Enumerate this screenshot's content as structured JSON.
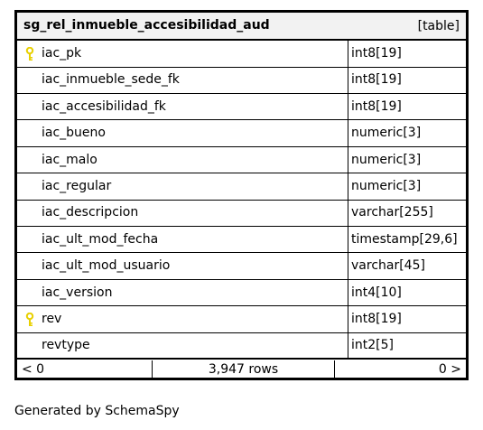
{
  "table": {
    "name": "sg_rel_inmueble_accesibilidad_aud",
    "kind": "[table]"
  },
  "colors": {
    "key_icon": "#e8d000",
    "header_bg": "#f2f2f2",
    "border": "#000000"
  },
  "columns": [
    {
      "name": "iac_pk",
      "type": "int8[19]",
      "key": true
    },
    {
      "name": "iac_inmueble_sede_fk",
      "type": "int8[19]",
      "key": false
    },
    {
      "name": "iac_accesibilidad_fk",
      "type": "int8[19]",
      "key": false
    },
    {
      "name": "iac_bueno",
      "type": "numeric[3]",
      "key": false
    },
    {
      "name": "iac_malo",
      "type": "numeric[3]",
      "key": false
    },
    {
      "name": "iac_regular",
      "type": "numeric[3]",
      "key": false
    },
    {
      "name": "iac_descripcion",
      "type": "varchar[255]",
      "key": false
    },
    {
      "name": "iac_ult_mod_fecha",
      "type": "timestamp[29,6]",
      "key": false
    },
    {
      "name": "iac_ult_mod_usuario",
      "type": "varchar[45]",
      "key": false
    },
    {
      "name": "iac_version",
      "type": "int4[10]",
      "key": false
    },
    {
      "name": "rev",
      "type": "int8[19]",
      "key": true
    },
    {
      "name": "revtype",
      "type": "int2[5]",
      "key": false
    }
  ],
  "footer": {
    "left": "< 0",
    "rows": "3,947 rows",
    "right": "0 >"
  },
  "generated_by": "Generated by SchemaSpy"
}
